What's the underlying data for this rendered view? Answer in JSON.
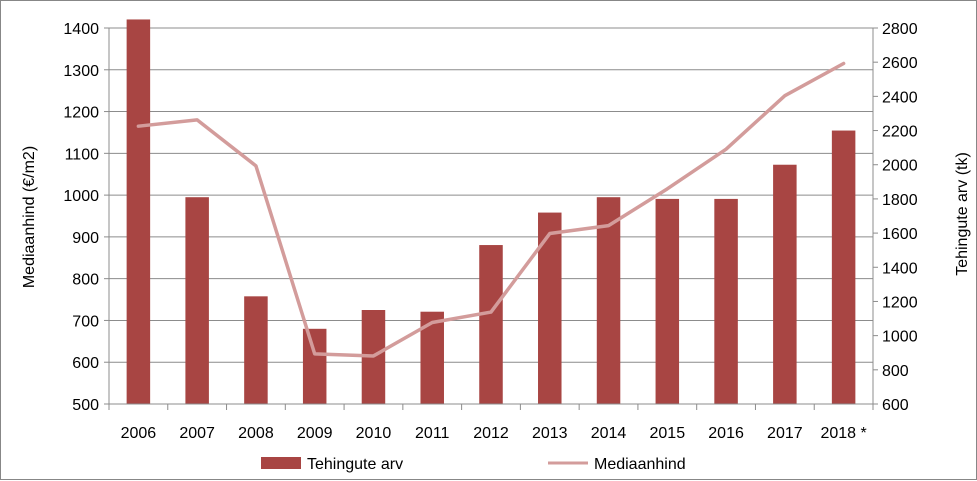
{
  "chart_data": {
    "type": "bar",
    "categories": [
      "2006",
      "2007",
      "2008",
      "2009",
      "2010",
      "2011",
      "2012",
      "2013",
      "2014",
      "2015",
      "2016",
      "2017",
      "2018 *"
    ],
    "series": [
      {
        "name": "Tehingute arv",
        "type": "bar",
        "axis": "right",
        "color": "#a84543",
        "values": [
          2850,
          1810,
          1230,
          1040,
          1150,
          1140,
          1530,
          1720,
          1810,
          1800,
          1800,
          2000,
          2200
        ]
      },
      {
        "name": "Mediaanhind",
        "type": "line",
        "axis": "left",
        "color": "#d39c9b",
        "values": [
          1165,
          1180,
          1070,
          620,
          615,
          695,
          720,
          908,
          927,
          1015,
          1110,
          1238,
          1315
        ]
      }
    ],
    "yleft": {
      "label": "Mediaanhind (€/m2)",
      "min": 500,
      "max": 1400,
      "step": 100
    },
    "yright": {
      "label": "Tehingute arv (tk)",
      "min": 600,
      "max": 2800,
      "step": 200
    },
    "grid": true,
    "legend": "bottom"
  }
}
